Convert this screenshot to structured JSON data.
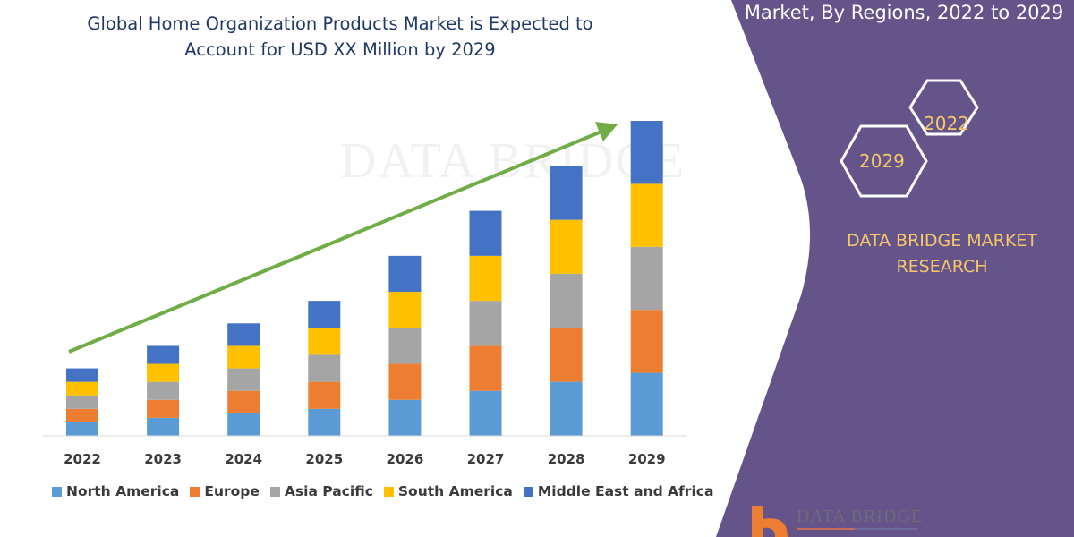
{
  "title_line1": "Global Home Organization Products Market is Expected to",
  "title_line2": "Account for USD XX Million by 2029",
  "side_panel": {
    "title": "Market, By Regions, 2022 to 2029",
    "hex_years": [
      "2022",
      "2029"
    ],
    "brand_line1": "DATA BRIDGE MARKET",
    "brand_line2": "RESEARCH",
    "logo_text": "DATA BRIDGE",
    "color": "#65548a",
    "text_color": "#f6c86a"
  },
  "watermark": "DATA BRIDGE",
  "chart_data": {
    "type": "bar",
    "stacked": true,
    "categories": [
      "2022",
      "2023",
      "2024",
      "2025",
      "2026",
      "2027",
      "2028",
      "2029"
    ],
    "series": [
      {
        "name": "North America",
        "color": "#5b9bd5",
        "values": [
          15,
          20,
          25,
          30,
          40,
          50,
          60,
          70
        ]
      },
      {
        "name": "Europe",
        "color": "#ed7d31",
        "values": [
          15,
          20,
          25,
          30,
          40,
          50,
          60,
          70
        ]
      },
      {
        "name": "Asia Pacific",
        "color": "#a5a5a5",
        "values": [
          15,
          20,
          25,
          30,
          40,
          50,
          60,
          70
        ]
      },
      {
        "name": "South America",
        "color": "#ffc000",
        "values": [
          15,
          20,
          25,
          30,
          40,
          50,
          60,
          70
        ]
      },
      {
        "name": "Middle East and Africa",
        "color": "#4472c4",
        "values": [
          15,
          20,
          25,
          30,
          40,
          50,
          60,
          70
        ]
      }
    ],
    "y_axis_shown": false,
    "grid": false,
    "legend_position": "bottom",
    "trend_arrow_color": "#70ad47"
  }
}
